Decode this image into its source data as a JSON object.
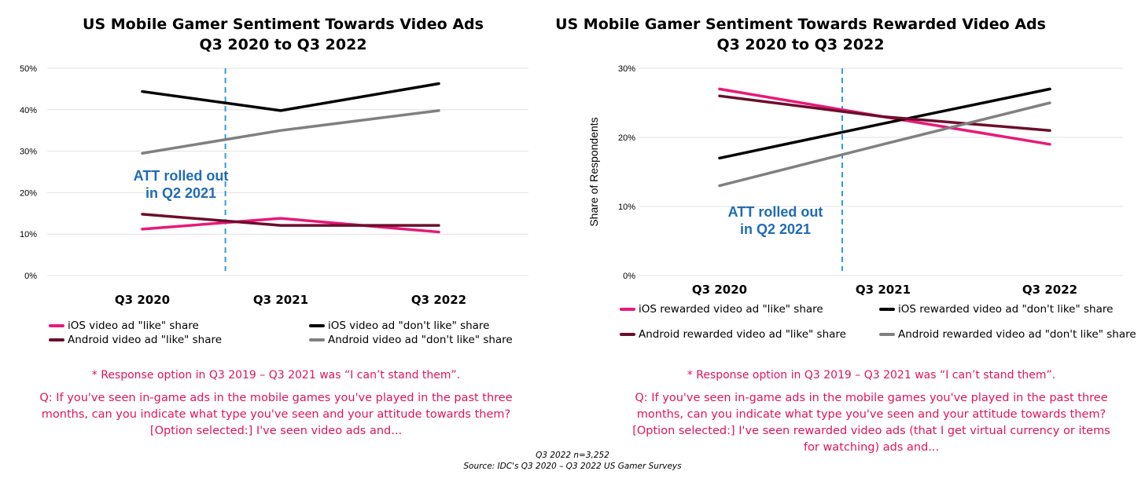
{
  "charts": [
    {
      "title_line1": "US Mobile Gamer Sentiment Towards Video Ads",
      "title_line2": "Q3 2020 to Q3 2022",
      "annotation_line1": "ATT rolled out",
      "annotation_line2": "in Q2 2021",
      "note": "* Response option in Q3 2019 – Q3 2021 was “I can’t stand them”.",
      "question_lines": [
        "Q: If you've seen in-game ads in the mobile games you've played in the past three",
        "months, can you indicate what type you've seen and your attitude towards them?",
        "[Option selected:] I've seen video ads and..."
      ]
    },
    {
      "title_line1": "US Mobile Gamer Sentiment Towards Rewarded Video Ads",
      "title_line2": "Q3 2020 to Q3 2022",
      "annotation_line1": "ATT rolled out",
      "annotation_line2": "in Q2 2021",
      "note": "* Response option in Q3 2019 – Q3 2021 was “I can’t stand them”.",
      "question_lines": [
        "Q: If you've seen in-game ads in the mobile games you've played in the past three",
        "months, can you indicate what type you've seen and your attitude towards them?",
        "[Option selected:] I've seen rewarded video ads (that I get virtual currency or items",
        "for watching) ads and..."
      ]
    }
  ],
  "chart_data": [
    {
      "type": "line",
      "title": "US Mobile Gamer Sentiment Towards Video Ads Q3 2020 to Q3 2022",
      "categories": [
        "Q3 2020",
        "Q3 2021",
        "Q3 2022"
      ],
      "yticks": [
        "0%",
        "10%",
        "20%",
        "30%",
        "40%",
        "50%"
      ],
      "ylim": [
        0,
        50
      ],
      "ylabel": "",
      "grid": true,
      "legend_position": "bottom",
      "marker_line": {
        "label": "ATT rolled out in Q2 2021",
        "x": 0.6,
        "color": "#2b9de0"
      },
      "series": [
        {
          "name": "iOS video ad \"like\" share",
          "color": "#e8197a",
          "values": [
            11.2,
            13.8,
            10.5
          ]
        },
        {
          "name": "iOS video ad \"don't like\" share",
          "color": "#000000",
          "values": [
            44.4,
            39.8,
            46.3
          ]
        },
        {
          "name": "Android video ad \"like\" share",
          "color": "#6b0f2a",
          "values": [
            14.8,
            12.1,
            12.1
          ]
        },
        {
          "name": "Android video ad \"don't like\" share",
          "color": "#808080",
          "values": [
            29.5,
            35.0,
            39.8
          ]
        }
      ]
    },
    {
      "type": "line",
      "title": "US Mobile Gamer Sentiment Towards Rewarded Video Ads Q3 2020 to Q3 2022",
      "categories": [
        "Q3 2020",
        "Q3 2021",
        "Q3 2022"
      ],
      "yticks": [
        "0%",
        "10%",
        "20%",
        "30%"
      ],
      "ylim": [
        0,
        30
      ],
      "ylabel": "Share of Respondents",
      "grid": true,
      "legend_position": "bottom",
      "marker_line": {
        "label": "ATT rolled out in Q2 2021",
        "x": 0.75,
        "color": "#2b9de0"
      },
      "series": [
        {
          "name": "iOS rewarded video ad \"like\" share",
          "color": "#e8197a",
          "values": [
            27,
            23,
            19
          ]
        },
        {
          "name": "iOS rewarded video ad \"don't like\" share",
          "color": "#000000",
          "values": [
            17,
            22,
            27
          ]
        },
        {
          "name": "Android rewarded video ad \"like\" share",
          "color": "#6b0f2a",
          "values": [
            26,
            23,
            21
          ]
        },
        {
          "name": "Android rewarded video ad \"don't like\" share",
          "color": "#808080",
          "values": [
            13,
            19,
            25
          ]
        }
      ]
    }
  ],
  "footer": {
    "line1": "Q3 2022 n=3,252",
    "line2": "Source: IDC's Q3 2020 – Q3 2022 US Gamer Surveys"
  }
}
